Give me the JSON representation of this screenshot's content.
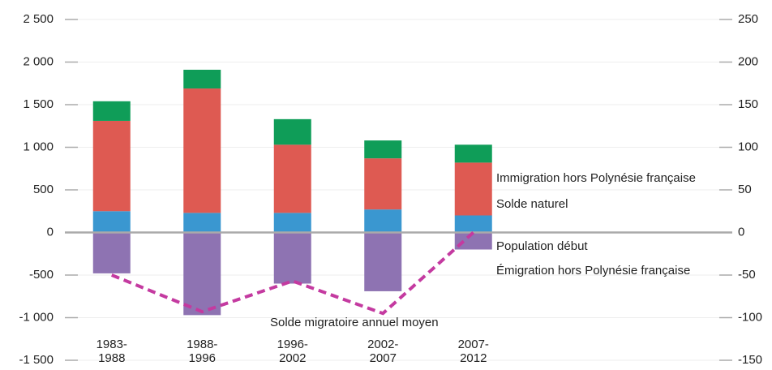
{
  "chart_data": {
    "type": "bar",
    "categories": [
      "1983-1988",
      "1988-1996",
      "1996-2002",
      "2002-2007",
      "2007-2012"
    ],
    "series": [
      {
        "name": "Population début",
        "color": "#3a97d0",
        "values": [
          250,
          230,
          230,
          270,
          200
        ]
      },
      {
        "name": "Solde naturel",
        "color": "#de5a52",
        "values": [
          1060,
          1460,
          800,
          600,
          620
        ]
      },
      {
        "name": "Immigration hors Polynésie française",
        "color": "#0f9d58",
        "values": [
          230,
          220,
          300,
          210,
          210
        ]
      },
      {
        "name": "Émigration hors Polynésie française",
        "color": "#8e73b2",
        "values": [
          -480,
          -970,
          -600,
          -690,
          -200
        ]
      },
      {
        "name": "Solde migratoire annuel moyen",
        "color": "#c43aa0",
        "type": "line",
        "axis": "y2",
        "values": [
          -50,
          -93,
          -57,
          -95,
          0
        ]
      }
    ],
    "ylim": [
      -1500,
      2500
    ],
    "yticks": [
      {
        "value": -1500,
        "label": "-1 500"
      },
      {
        "value": -1000,
        "label": "-1 000"
      },
      -500,
      0,
      500,
      {
        "value": 1000,
        "label": "1 000"
      },
      {
        "value": 1500,
        "label": "1 500"
      },
      {
        "value": 2000,
        "label": "2 000"
      },
      {
        "value": 2500,
        "label": "2 500"
      }
    ],
    "y2lim": [
      -150,
      250
    ],
    "y2ticks": [
      -150,
      -100,
      -50,
      0,
      50,
      100,
      150,
      200,
      250
    ],
    "grid": true
  }
}
